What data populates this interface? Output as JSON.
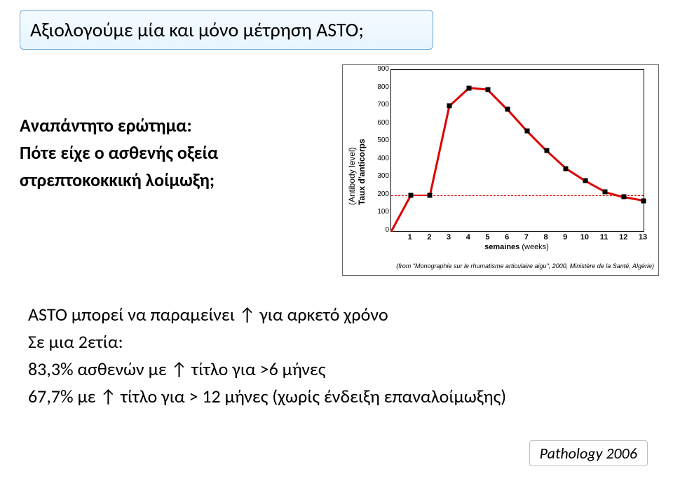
{
  "title": "Αξιολογούμε  μία και μόνο μέτρηση ASTO;",
  "question": {
    "line1": "Αναπάντητο ερώτημα:",
    "line2": "Πότε είχε ο ασθενής οξεία στρεπτοκοκκική λοίμωξη;"
  },
  "chart": {
    "type": "line",
    "y_axis_label_outer": "(Antibody level)",
    "y_axis_label_inner": "Taux d'anticorps",
    "x_axis_label_bold": "semaines",
    "x_axis_label_paren": "(weeks)",
    "caption": "(from \"Monographie sur le rhumatisme articulaire aigu\", 2000, Ministère de la Santé, Algérie)",
    "ylim": [
      0,
      900
    ],
    "yticks": [
      0,
      100,
      200,
      300,
      400,
      500,
      600,
      700,
      800,
      900
    ],
    "xlim": [
      0,
      13
    ],
    "xticks": [
      1,
      2,
      3,
      4,
      5,
      6,
      7,
      8,
      9,
      10,
      11,
      12,
      13
    ],
    "line_color": "#dc0000",
    "marker_color": "#000000",
    "dashed_threshold": 200,
    "data": [
      {
        "x": 0,
        "y": 0
      },
      {
        "x": 1,
        "y": 200
      },
      {
        "x": 2,
        "y": 200
      },
      {
        "x": 3,
        "y": 700
      },
      {
        "x": 4,
        "y": 800
      },
      {
        "x": 5,
        "y": 790
      },
      {
        "x": 6,
        "y": 680
      },
      {
        "x": 7,
        "y": 560
      },
      {
        "x": 8,
        "y": 450
      },
      {
        "x": 9,
        "y": 350
      },
      {
        "x": 10,
        "y": 280
      },
      {
        "x": 11,
        "y": 220
      },
      {
        "x": 12,
        "y": 190
      },
      {
        "x": 13,
        "y": 170
      }
    ],
    "markers_at": [
      1,
      2,
      3,
      4,
      5,
      6,
      7,
      8,
      9,
      10,
      11,
      12,
      13
    ]
  },
  "body": {
    "line1_a": "ASTO  μπορεί να παραμείνει ",
    "line1_b": " για αρκετό χρόνο",
    "line2": "Σε μια 2ετία:",
    "line3_a": "83,3%  ασθενών με ",
    "line3_b": " τίτλο για >6 μήνες",
    "line4_a": "67,7% με ",
    "line4_b": " τίτλο για > 12 μήνες (χωρίς ένδειξη επαναλοίμωξης)",
    "arrow": "↑"
  },
  "citation": "Pathology 2006"
}
